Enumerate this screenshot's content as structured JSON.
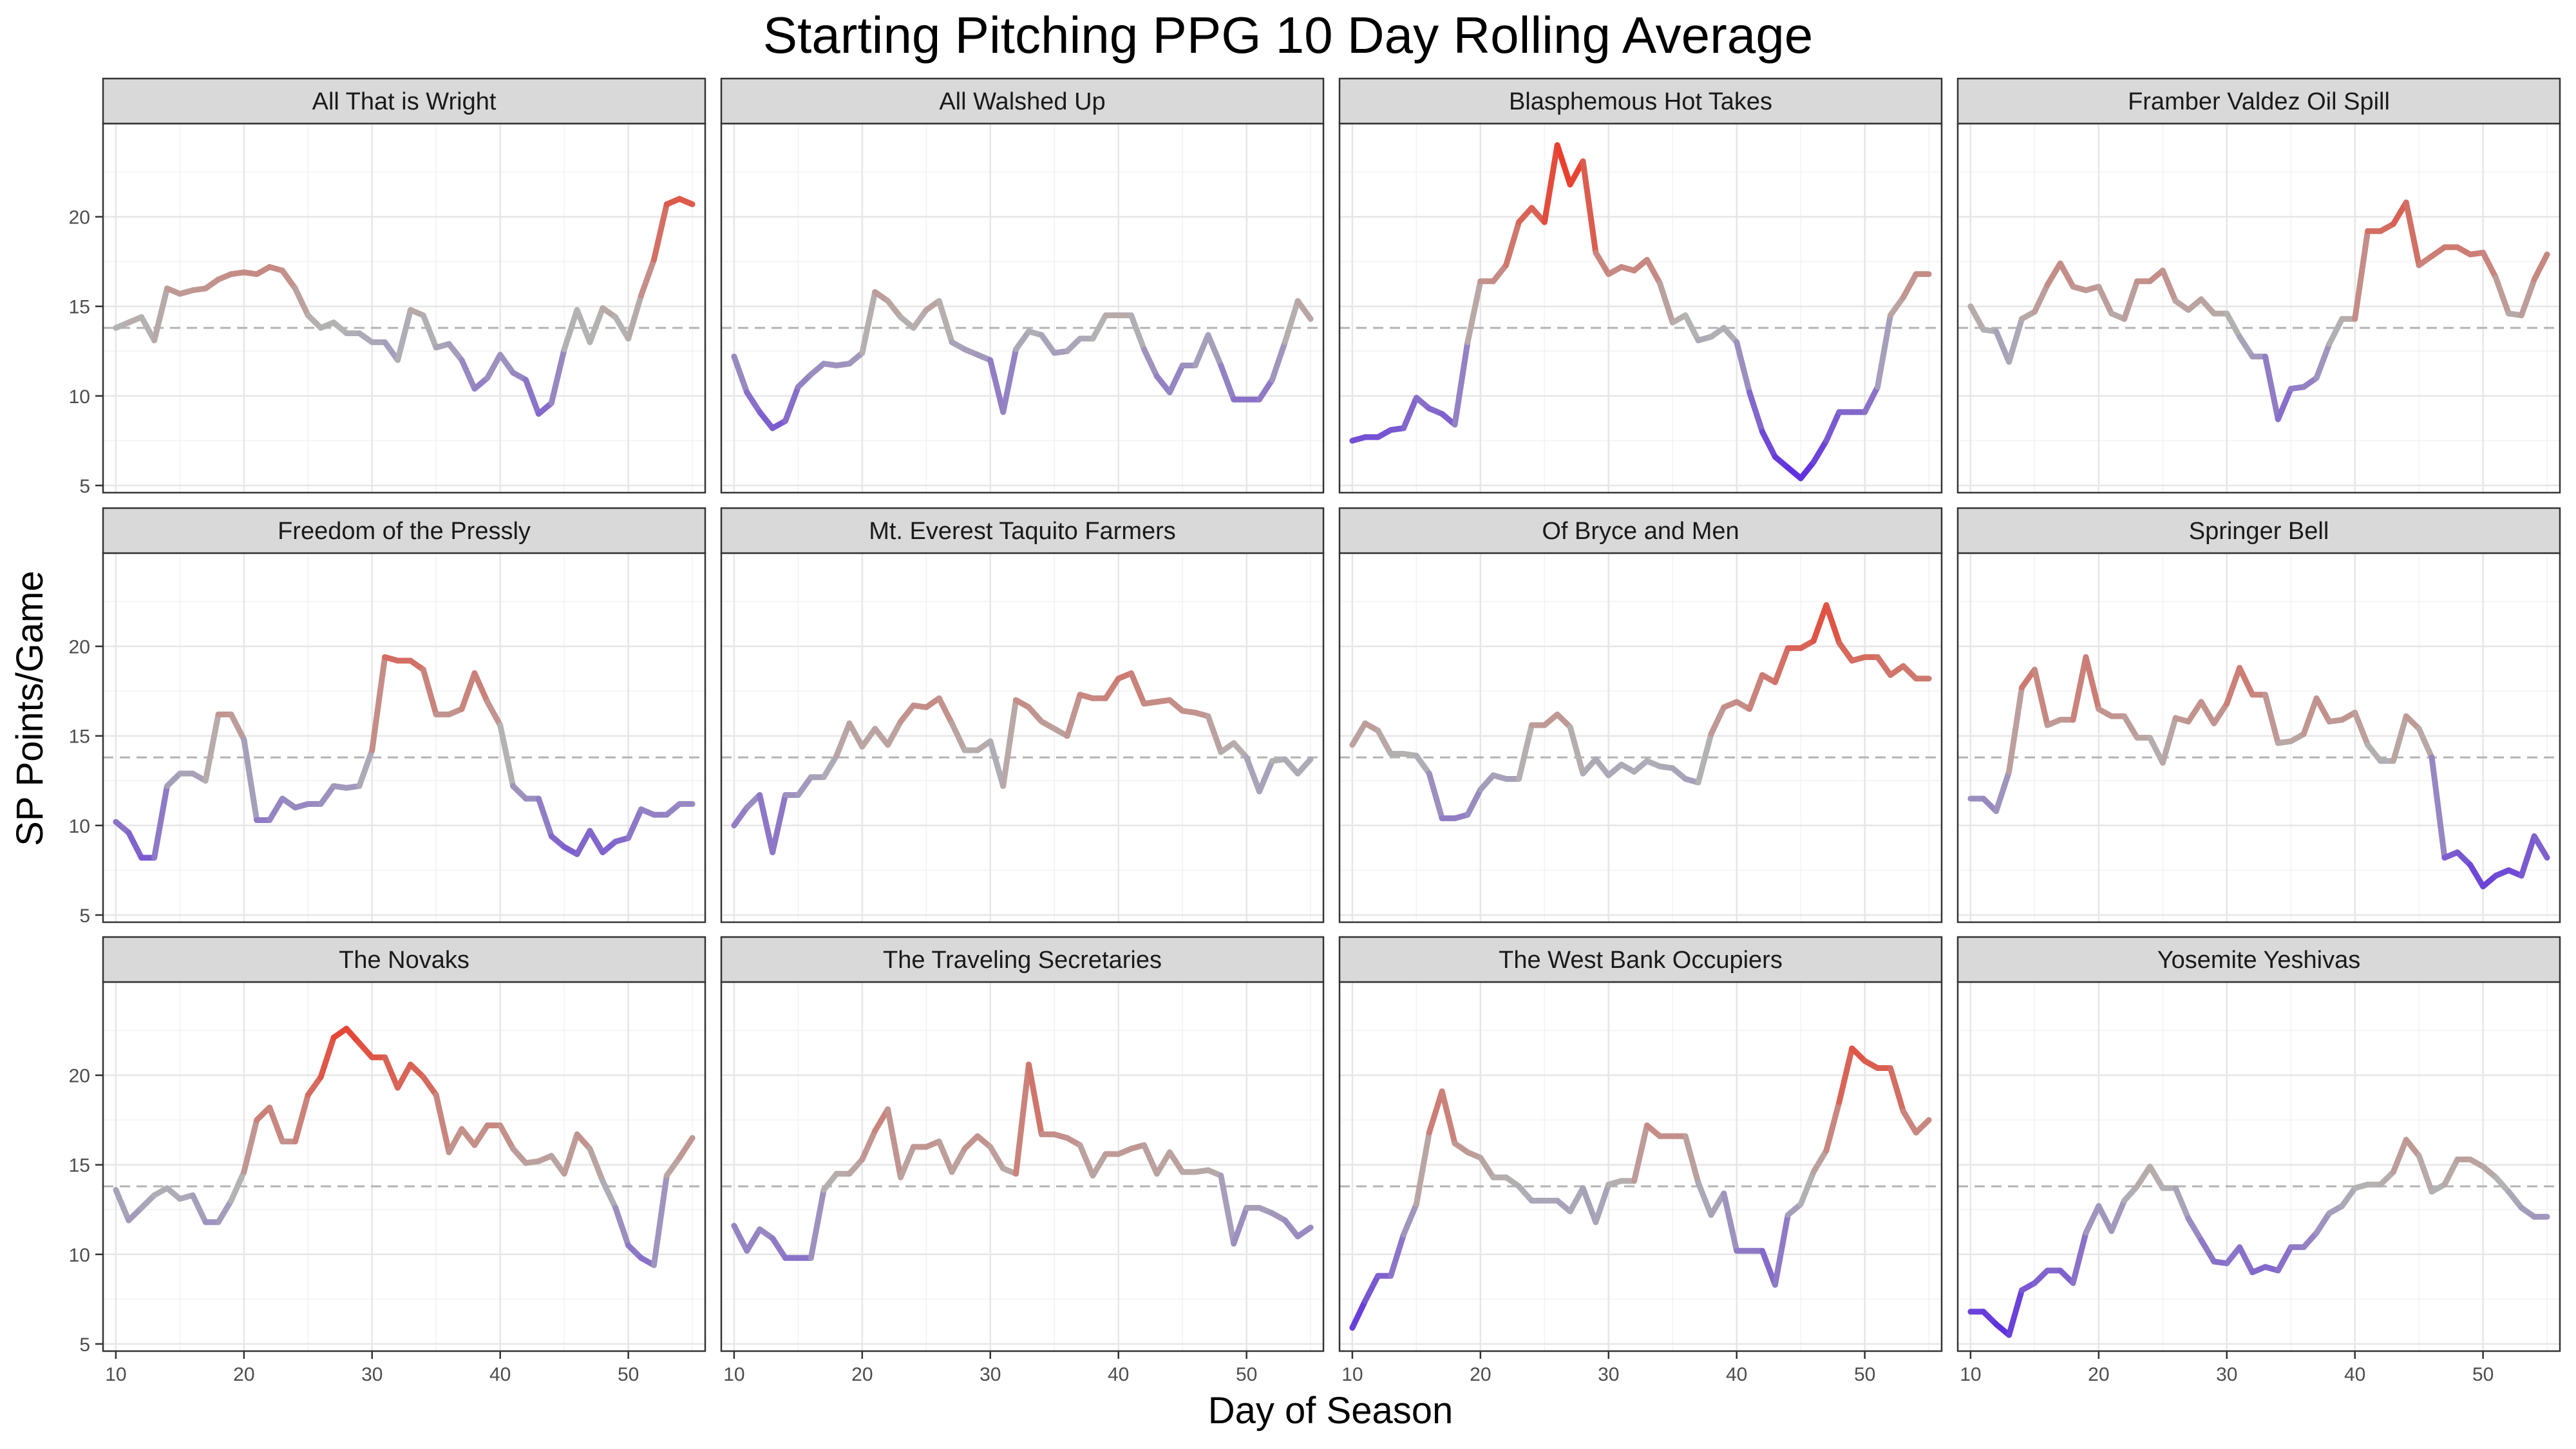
{
  "chart_data": {
    "type": "line",
    "title": "Starting Pitching PPG 10 Day Rolling Average",
    "xlabel": "Day of Season",
    "ylabel": "SP Points/Game",
    "xlim": [
      9,
      56
    ],
    "ylim": [
      4.6,
      25.2
    ],
    "x_ticks": [
      10,
      20,
      30,
      40,
      50
    ],
    "y_ticks": [
      5,
      10,
      15,
      20
    ],
    "reference_line": 13.8,
    "grid": true,
    "legend": "none",
    "layout": "facet 3 rows x 4 columns",
    "colors": {
      "low": "#5c2be0",
      "mid": "#b3b3b3",
      "high": "#f0311c",
      "strip_fill": "#d9d9d9",
      "reference": "#b3b3b3"
    },
    "color_scale": [
      5.4,
      13.8,
      24
    ],
    "x": [
      10,
      11,
      12,
      13,
      14,
      15,
      16,
      17,
      18,
      19,
      20,
      21,
      22,
      23,
      24,
      25,
      26,
      27,
      28,
      29,
      30,
      31,
      32,
      33,
      34,
      35,
      36,
      37,
      38,
      39,
      40,
      41,
      42,
      43,
      44,
      45,
      46,
      47,
      48,
      49,
      50,
      51,
      52,
      53,
      54,
      55
    ],
    "series": [
      {
        "name": "All That is Wright",
        "values": [
          13.8,
          14.1,
          14.4,
          13.1,
          16.0,
          15.7,
          15.9,
          16.0,
          16.5,
          16.8,
          16.9,
          16.8,
          17.2,
          17.0,
          16.0,
          14.5,
          13.8,
          14.1,
          13.5,
          13.5,
          13.0,
          13.0,
          12.0,
          14.8,
          14.5,
          12.7,
          12.9,
          12.0,
          10.4,
          11.0,
          12.3,
          11.3,
          10.9,
          9.0,
          9.6,
          12.6,
          14.8,
          13.0,
          14.9,
          14.4,
          13.2,
          15.6,
          17.6,
          20.7,
          21.0,
          20.7
        ]
      },
      {
        "name": "All Walshed Up",
        "values": [
          12.2,
          10.2,
          9.1,
          8.2,
          8.6,
          10.5,
          11.2,
          11.8,
          11.7,
          11.8,
          12.4,
          15.8,
          15.3,
          14.4,
          13.8,
          14.8,
          15.3,
          13.0,
          12.6,
          12.3,
          12.0,
          9.1,
          12.6,
          13.6,
          13.4,
          12.4,
          12.5,
          13.2,
          13.2,
          14.5,
          14.5,
          14.5,
          12.6,
          11.1,
          10.2,
          11.7,
          11.7,
          13.4,
          11.7,
          9.8,
          9.8,
          9.8,
          10.9,
          13.0,
          15.3,
          14.3
        ]
      },
      {
        "name": "Blasphemous Hot Takes",
        "values": [
          7.5,
          7.7,
          7.7,
          8.1,
          8.2,
          9.9,
          9.3,
          9.0,
          8.4,
          13.0,
          16.4,
          16.4,
          17.3,
          19.7,
          20.5,
          19.7,
          24.0,
          21.8,
          23.1,
          18.0,
          16.8,
          17.2,
          17.0,
          17.6,
          16.3,
          14.1,
          14.5,
          13.1,
          13.3,
          13.8,
          13.0,
          10.2,
          8.0,
          6.6,
          6.0,
          5.4,
          6.3,
          7.5,
          9.1,
          9.1,
          9.1,
          10.5,
          14.5,
          15.5,
          16.8,
          16.8
        ]
      },
      {
        "name": "Framber Valdez Oil Spill",
        "values": [
          15.0,
          13.7,
          13.6,
          11.9,
          14.3,
          14.7,
          16.2,
          17.4,
          16.1,
          15.9,
          16.1,
          14.6,
          14.3,
          16.4,
          16.4,
          17.0,
          15.3,
          14.8,
          15.4,
          14.6,
          14.6,
          13.3,
          12.2,
          12.2,
          8.7,
          10.4,
          10.5,
          11.0,
          12.9,
          14.3,
          14.3,
          19.2,
          19.2,
          19.6,
          20.8,
          17.3,
          17.8,
          18.3,
          18.3,
          17.9,
          18.0,
          16.6,
          14.6,
          14.5,
          16.5,
          17.9
        ]
      },
      {
        "name": "Freedom of the Pressly",
        "values": [
          10.2,
          9.6,
          8.2,
          8.2,
          12.2,
          12.9,
          12.9,
          12.5,
          16.2,
          16.2,
          14.8,
          10.3,
          10.3,
          11.5,
          11.0,
          11.2,
          11.2,
          12.2,
          12.1,
          12.2,
          14.2,
          19.4,
          19.2,
          19.2,
          18.7,
          16.2,
          16.2,
          16.5,
          18.5,
          16.9,
          15.6,
          12.2,
          11.5,
          11.5,
          9.4,
          8.8,
          8.4,
          9.7,
          8.5,
          9.1,
          9.3,
          10.9,
          10.6,
          10.6,
          11.2,
          11.2
        ]
      },
      {
        "name": "Mt. Everest Taquito Farmers",
        "values": [
          10.0,
          11.0,
          11.7,
          8.5,
          11.7,
          11.7,
          12.7,
          12.7,
          13.9,
          15.7,
          14.4,
          15.4,
          14.5,
          15.8,
          16.7,
          16.6,
          17.1,
          15.7,
          14.2,
          14.2,
          14.7,
          12.2,
          17.0,
          16.6,
          15.8,
          15.4,
          15.0,
          17.3,
          17.1,
          17.1,
          18.2,
          18.5,
          16.8,
          16.9,
          17.0,
          16.4,
          16.3,
          16.1,
          14.1,
          14.6,
          13.8,
          11.9,
          13.6,
          13.7,
          12.9,
          13.7
        ]
      },
      {
        "name": "Of Bryce and Men",
        "values": [
          14.5,
          15.7,
          15.3,
          14.0,
          14.0,
          13.9,
          12.9,
          10.4,
          10.4,
          10.6,
          12.0,
          12.8,
          12.6,
          12.6,
          15.6,
          15.6,
          16.2,
          15.5,
          12.9,
          13.7,
          12.8,
          13.4,
          13.0,
          13.6,
          13.3,
          13.2,
          12.6,
          12.4,
          15.1,
          16.6,
          16.9,
          16.5,
          18.4,
          18.0,
          19.9,
          19.9,
          20.3,
          22.3,
          20.2,
          19.2,
          19.4,
          19.4,
          18.4,
          18.9,
          18.2,
          18.2
        ]
      },
      {
        "name": "Springer Bell",
        "values": [
          11.5,
          11.5,
          10.8,
          13.0,
          17.7,
          18.7,
          15.6,
          15.9,
          15.9,
          19.4,
          16.5,
          16.1,
          16.1,
          14.9,
          14.9,
          13.5,
          16.0,
          15.8,
          16.9,
          15.7,
          16.8,
          18.8,
          17.3,
          17.3,
          14.6,
          14.7,
          15.1,
          17.1,
          15.8,
          15.9,
          16.3,
          14.5,
          13.6,
          13.6,
          16.1,
          15.4,
          13.8,
          8.2,
          8.5,
          7.8,
          6.6,
          7.2,
          7.5,
          7.2,
          9.4,
          8.2
        ]
      },
      {
        "name": "The Novaks",
        "values": [
          13.6,
          11.9,
          12.6,
          13.3,
          13.7,
          13.1,
          13.3,
          11.8,
          11.8,
          13.0,
          14.6,
          17.5,
          18.2,
          16.3,
          16.3,
          18.9,
          19.9,
          22.1,
          22.6,
          21.8,
          21.0,
          21.0,
          19.3,
          20.6,
          19.9,
          18.9,
          15.7,
          17.0,
          16.1,
          17.2,
          17.2,
          15.9,
          15.1,
          15.2,
          15.5,
          14.5,
          16.7,
          15.9,
          14.1,
          12.6,
          10.5,
          9.8,
          9.4,
          14.4,
          15.4,
          16.5
        ]
      },
      {
        "name": "The Traveling Secretaries",
        "values": [
          11.6,
          10.2,
          11.4,
          10.9,
          9.8,
          9.8,
          9.8,
          13.6,
          14.5,
          14.5,
          15.3,
          16.9,
          18.1,
          14.3,
          16.0,
          16.0,
          16.3,
          14.6,
          15.9,
          16.6,
          16.0,
          14.8,
          14.5,
          20.6,
          16.7,
          16.7,
          16.5,
          16.1,
          14.4,
          15.6,
          15.6,
          15.9,
          16.1,
          14.5,
          15.7,
          14.6,
          14.6,
          14.7,
          14.4,
          10.6,
          12.6,
          12.6,
          12.3,
          11.9,
          11.0,
          11.5
        ]
      },
      {
        "name": "The West Bank Occupiers",
        "values": [
          5.9,
          7.4,
          8.8,
          8.8,
          11.1,
          12.8,
          16.8,
          19.1,
          16.2,
          15.7,
          15.4,
          14.3,
          14.3,
          13.8,
          13.0,
          13.0,
          13.0,
          12.4,
          13.7,
          11.8,
          13.9,
          14.1,
          14.1,
          17.2,
          16.6,
          16.6,
          16.6,
          14.0,
          12.2,
          13.4,
          10.2,
          10.2,
          10.2,
          8.3,
          12.2,
          12.8,
          14.6,
          15.8,
          18.5,
          21.5,
          20.8,
          20.4,
          20.4,
          18.0,
          16.8,
          17.5
        ]
      },
      {
        "name": "Yosemite Yeshivas",
        "values": [
          6.8,
          6.8,
          6.1,
          5.5,
          8.0,
          8.4,
          9.1,
          9.1,
          8.4,
          11.2,
          12.7,
          11.3,
          13.0,
          13.8,
          14.9,
          13.7,
          13.7,
          12.0,
          10.8,
          9.6,
          9.5,
          10.4,
          9.0,
          9.3,
          9.1,
          10.4,
          10.4,
          11.2,
          12.3,
          12.7,
          13.7,
          13.9,
          13.9,
          14.6,
          16.4,
          15.5,
          13.5,
          13.9,
          15.3,
          15.3,
          14.9,
          14.3,
          13.5,
          12.6,
          12.1,
          12.1
        ]
      }
    ]
  }
}
